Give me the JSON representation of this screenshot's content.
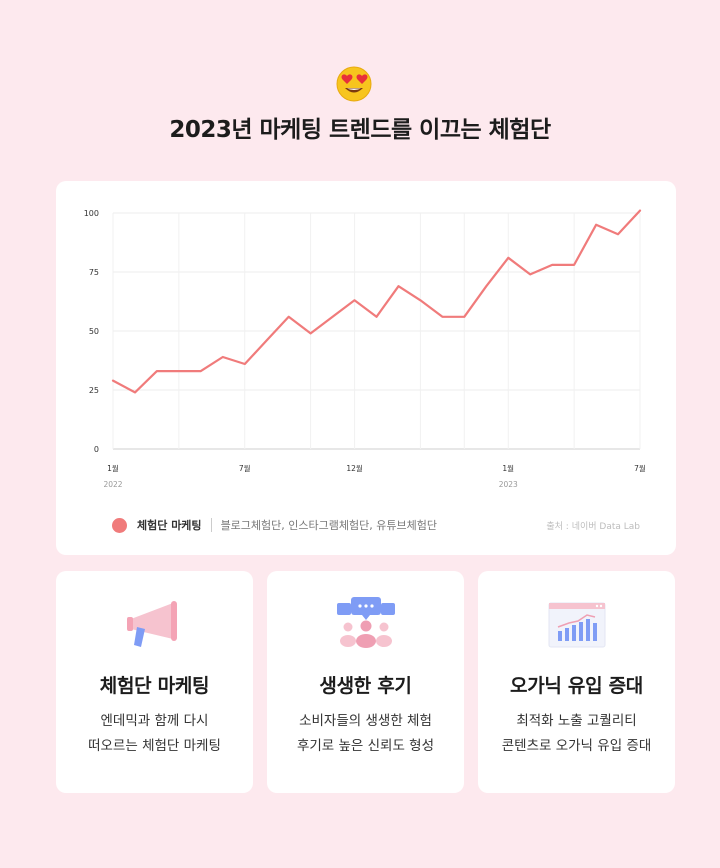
{
  "header": {
    "emoji_icon": "heart-eyes-emoji-icon",
    "title": "2023년 마케팅 트렌드를 이끄는 체험단"
  },
  "chart_data": {
    "type": "line",
    "x": [
      "2022-01",
      "2022-02",
      "2022-03",
      "2022-04",
      "2022-05",
      "2022-06",
      "2022-07",
      "2022-08",
      "2022-09",
      "2022-10",
      "2022-11",
      "2022-12",
      "2023-01-a",
      "2023-01-b",
      "2023-01-c",
      "2023-01-d",
      "2023-01-e",
      "2023-01-f",
      "2023-01-g",
      "2023-01-h",
      "2023-01-i",
      "2023-01-j",
      "2023-01-k",
      "2023-01-l",
      "2023-01-m"
    ],
    "x_ticks": [
      {
        "label": "1월",
        "year": "2022",
        "index": 0
      },
      {
        "label": "7월",
        "year": "",
        "index": 6
      },
      {
        "label": "12월",
        "year": "",
        "index": 11
      },
      {
        "label": "1월",
        "year": "2023",
        "index": 18
      },
      {
        "label": "7월",
        "year": "",
        "index": 24
      }
    ],
    "series": [
      {
        "name": "체험단 마케팅",
        "color": "#f07b7b",
        "values": [
          29,
          24,
          33,
          33,
          33,
          39,
          36,
          46,
          56,
          49,
          56,
          63,
          56,
          69,
          63,
          56,
          56,
          69,
          81,
          74,
          78,
          78,
          95,
          91,
          101
        ]
      }
    ],
    "ylim": [
      0,
      100
    ],
    "yticks": [
      0,
      25,
      50,
      75,
      100
    ],
    "grid": true,
    "legend": {
      "name": "체험단 마케팅",
      "sub": "블로그체험단, 인스타그램체험단, 유튜브체험단"
    },
    "source": "출처 : 네이버 Data Lab"
  },
  "cards": [
    {
      "icon": "megaphone-icon",
      "title": "체험단 마케팅",
      "lines": [
        "엔데믹과 함께 다시",
        "떠오르는 체험단 마케팅"
      ]
    },
    {
      "icon": "community-chat-icon",
      "title": "생생한 후기",
      "lines": [
        "소비자들의 생생한 체험",
        "후기로 높은 신뢰도 형성"
      ]
    },
    {
      "icon": "growth-chart-icon",
      "title": "오가닉 유입 증대",
      "lines": [
        "최적화 노출 고퀄리티",
        "콘텐츠로 오가닉 유입 증대"
      ]
    }
  ]
}
